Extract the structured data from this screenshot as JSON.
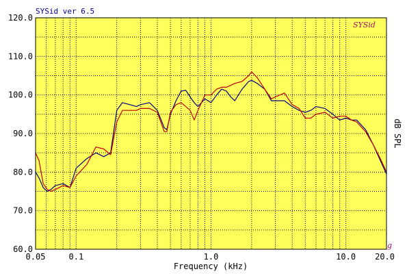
{
  "chart_data": {
    "type": "line",
    "title": "SYSid ver 6.5",
    "watermark": "SYSid",
    "corner_mark": "g",
    "xlabel": "Frequency (kHz)",
    "ylabel": "dB SPL",
    "x_scale": "log",
    "xlim": [
      0.05,
      20.0
    ],
    "ylim": [
      60.0,
      120.0
    ],
    "y_ticks": [
      "60.0",
      "70.0",
      "80.0",
      "90.0",
      "100.0",
      "110.0",
      "120.0"
    ],
    "y_tick_values": [
      60,
      70,
      80,
      90,
      100,
      110,
      120
    ],
    "x_ticks": [
      "0.05",
      "0.1",
      "1.0",
      "10.0",
      "20.0"
    ],
    "x_tick_values": [
      0.05,
      0.1,
      1.0,
      10.0,
      20.0
    ],
    "grid": true,
    "background_color": "#ffff5c",
    "series": [
      {
        "color": "#000080",
        "x": [
          0.05,
          0.053,
          0.057,
          0.061,
          0.065,
          0.07,
          0.08,
          0.09,
          0.1,
          0.12,
          0.14,
          0.16,
          0.18,
          0.2,
          0.22,
          0.25,
          0.28,
          0.3,
          0.35,
          0.4,
          0.45,
          0.47,
          0.5,
          0.55,
          0.6,
          0.65,
          0.7,
          0.75,
          0.8,
          0.9,
          1.0,
          1.1,
          1.2,
          1.3,
          1.4,
          1.5,
          1.7,
          1.9,
          2.0,
          2.2,
          2.5,
          2.8,
          3.0,
          3.5,
          4.0,
          4.5,
          5.0,
          5.5,
          6.0,
          7.0,
          8.0,
          9.0,
          10.0,
          11.0,
          12.0,
          14.0,
          16.0,
          18.0,
          20.0
        ],
        "values": [
          80.0,
          78.5,
          76.0,
          75.0,
          75.5,
          76.5,
          77.0,
          76.0,
          81.0,
          83.5,
          85.0,
          84.0,
          85.0,
          96.0,
          98.0,
          97.5,
          97.0,
          97.5,
          98.0,
          96.0,
          91.5,
          91.0,
          95.0,
          98.5,
          101.0,
          101.2,
          99.5,
          98.0,
          97.0,
          99.0,
          98.0,
          100.0,
          101.5,
          101.0,
          99.5,
          98.5,
          101.5,
          103.5,
          103.8,
          103.0,
          101.5,
          98.5,
          98.5,
          98.5,
          97.0,
          96.0,
          95.5,
          96.0,
          97.0,
          96.5,
          95.0,
          93.5,
          94.0,
          93.5,
          93.5,
          91.0,
          87.0,
          83.0,
          79.5
        ]
      },
      {
        "color": "#c00000",
        "x": [
          0.05,
          0.053,
          0.057,
          0.061,
          0.065,
          0.07,
          0.08,
          0.09,
          0.1,
          0.12,
          0.14,
          0.16,
          0.18,
          0.2,
          0.22,
          0.25,
          0.28,
          0.3,
          0.35,
          0.4,
          0.45,
          0.47,
          0.5,
          0.55,
          0.6,
          0.65,
          0.7,
          0.75,
          0.8,
          0.9,
          1.0,
          1.1,
          1.2,
          1.3,
          1.4,
          1.5,
          1.7,
          1.9,
          2.0,
          2.2,
          2.5,
          2.8,
          3.0,
          3.5,
          4.0,
          4.5,
          5.0,
          5.5,
          6.0,
          7.0,
          8.0,
          9.0,
          10.0,
          11.0,
          12.0,
          14.0,
          16.0,
          18.0,
          20.0
        ],
        "values": [
          85.0,
          83.0,
          77.0,
          75.5,
          75.0,
          75.5,
          76.5,
          76.0,
          79.0,
          82.0,
          86.5,
          86.0,
          84.5,
          93.0,
          96.0,
          96.0,
          96.0,
          96.5,
          96.5,
          95.5,
          90.5,
          90.5,
          95.5,
          97.5,
          98.0,
          97.0,
          96.0,
          93.5,
          96.0,
          100.0,
          100.0,
          101.5,
          102.0,
          102.0,
          102.5,
          103.0,
          103.5,
          105.0,
          106.0,
          104.5,
          101.5,
          99.0,
          99.5,
          100.5,
          97.5,
          96.5,
          94.0,
          94.0,
          95.0,
          95.5,
          94.0,
          94.5,
          94.5,
          93.5,
          93.0,
          90.5,
          87.0,
          83.5,
          80.0
        ]
      }
    ]
  }
}
